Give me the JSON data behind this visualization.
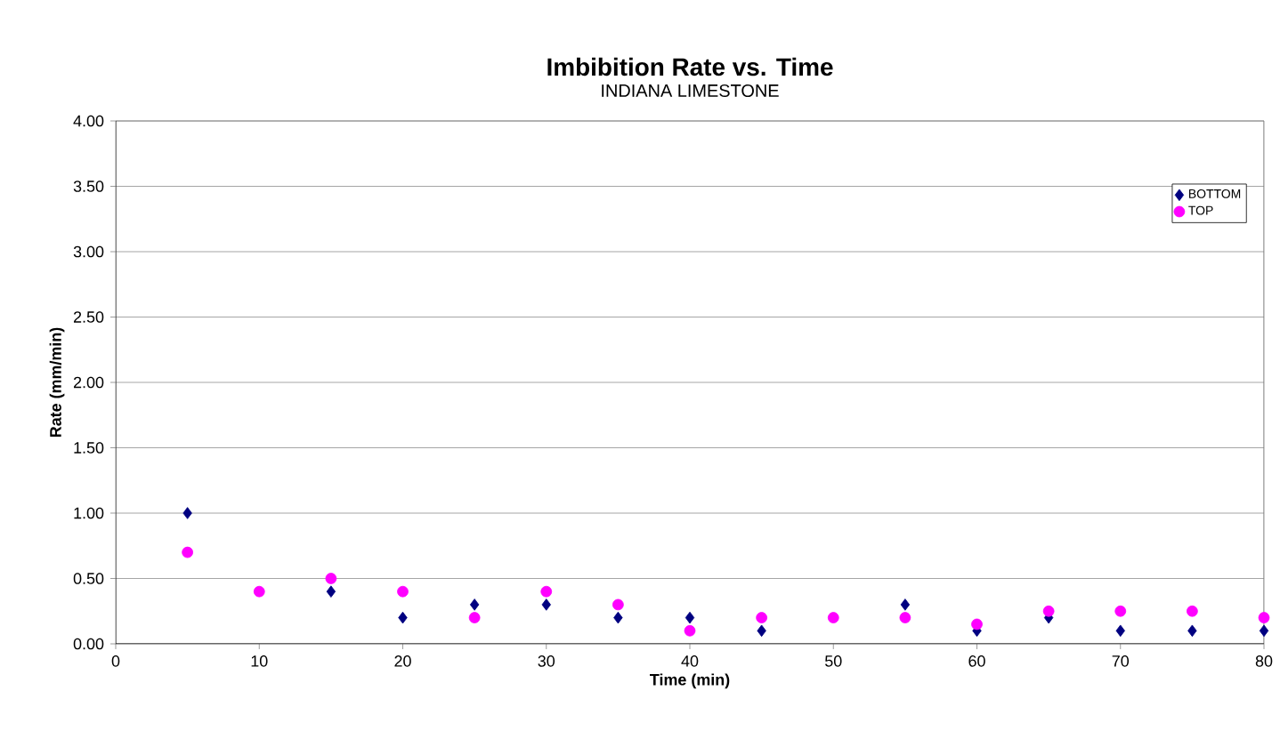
{
  "chart_data": {
    "type": "scatter",
    "title": "Imbibition Rate vs. Time",
    "subtitle": "INDIANA LIMESTONE",
    "xlabel": "Time (min)",
    "ylabel": "Rate (mm/min)",
    "x": [
      5,
      10,
      15,
      20,
      25,
      30,
      35,
      40,
      45,
      50,
      55,
      60,
      65,
      70,
      75,
      80
    ],
    "series": [
      {
        "name": "BOTTOM",
        "color": "#000080",
        "marker": "diamond",
        "values": [
          1.0,
          null,
          0.4,
          0.2,
          0.3,
          0.3,
          0.2,
          0.2,
          0.1,
          null,
          0.3,
          0.1,
          0.2,
          0.1,
          0.1,
          0.1
        ]
      },
      {
        "name": "TOP",
        "color": "#ff00ff",
        "marker": "circle",
        "values": [
          0.7,
          0.4,
          0.5,
          0.4,
          0.2,
          0.4,
          0.3,
          0.1,
          0.2,
          0.2,
          0.2,
          0.15,
          0.25,
          0.25,
          0.25,
          0.2
        ]
      }
    ],
    "xlim": [
      0,
      80
    ],
    "xticks": [
      0,
      10,
      20,
      30,
      40,
      50,
      60,
      70,
      80
    ],
    "ylim": [
      0,
      4
    ],
    "yticks": [
      {
        "value": 0,
        "label": "0.00"
      },
      {
        "value": 0.5,
        "label": "0.50"
      },
      {
        "value": 1,
        "label": "1.00"
      },
      {
        "value": 1.5,
        "label": "1.50"
      },
      {
        "value": 2,
        "label": "2.00"
      },
      {
        "value": 2.5,
        "label": "2.50"
      },
      {
        "value": 3,
        "label": "3.00"
      },
      {
        "value": 3.5,
        "label": "3.50"
      },
      {
        "value": 4,
        "label": "4.00"
      }
    ],
    "grid": "y",
    "legend": "top right"
  }
}
